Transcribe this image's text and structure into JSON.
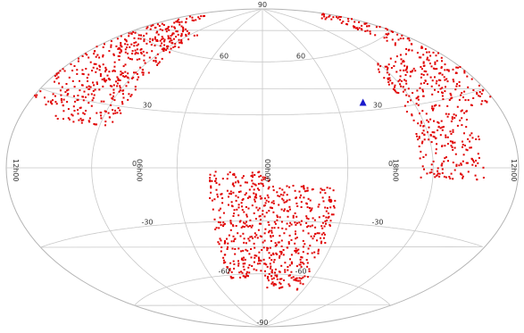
{
  "chart_data": {
    "type": "scatter",
    "projection": "aitoff-equatorial",
    "colors": {
      "points": "#e00000",
      "marker": "#1a1acc",
      "grid": "#c8c8c8"
    },
    "ra_tick_labels": [
      {
        "ra_hours": 12,
        "text": "12h00"
      },
      {
        "ra_hours": 6,
        "text": "06h00"
      },
      {
        "ra_hours": 0,
        "text": "00h00"
      },
      {
        "ra_hours": 18,
        "text": "18h00"
      },
      {
        "ra_hours": 12.0001,
        "text": "12h00"
      }
    ],
    "dec_tick_labels": [
      {
        "ra_hours": 0,
        "dec": 90,
        "text": "90"
      },
      {
        "ra_hours": 3,
        "dec": 60,
        "text": "60"
      },
      {
        "ra_hours": 21,
        "dec": 60,
        "text": "60"
      },
      {
        "ra_hours": 6,
        "dec": 30,
        "text": "30"
      },
      {
        "ra_hours": 18,
        "dec": 30,
        "text": "30"
      },
      {
        "ra_hours": 6,
        "dec": 0,
        "text": "0"
      },
      {
        "ra_hours": 18,
        "dec": 0,
        "text": "0"
      },
      {
        "ra_hours": 6,
        "dec": -30,
        "text": "-30"
      },
      {
        "ra_hours": 18,
        "dec": -30,
        "text": "-30"
      },
      {
        "ra_hours": 3,
        "dec": -60,
        "text": "-60"
      },
      {
        "ra_hours": 21,
        "dec": -60,
        "text": "-60"
      },
      {
        "ra_hours": 0,
        "dec": -90,
        "text": "-90"
      }
    ],
    "series": [
      {
        "marker": "dot",
        "regions": [
          {
            "ra_hours_range": [
              7.2,
              10.4
            ],
            "dec_range": [
              20,
              70
            ]
          },
          {
            "ra_hours_range": [
              10.4,
              13.6
            ],
            "dec_range": [
              25,
              78
            ]
          },
          {
            "ra_hours_range": [
              13.6,
              16.6
            ],
            "dec_range": [
              -5,
              52
            ]
          },
          {
            "ra_hours_range": [
              20.4,
              23.6
            ],
            "dec_range": [
              -68,
              -10
            ]
          },
          {
            "ra_hours_range": [
              23.6,
              26.6
            ],
            "dec_range": [
              -62,
              -2
            ]
          }
        ]
      },
      {
        "marker": "triangle",
        "points": [
          {
            "ra_hours": 18.6,
            "dec": 34
          }
        ]
      }
    ]
  }
}
